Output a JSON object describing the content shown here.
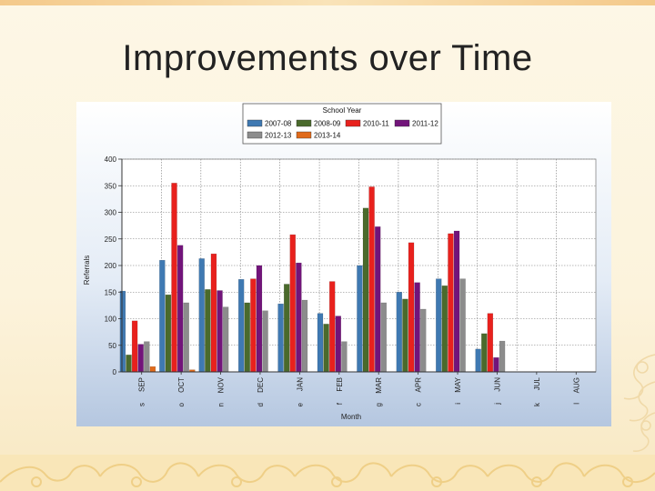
{
  "slide": {
    "title": "Improvements over Time"
  },
  "chart_data": {
    "type": "bar",
    "title": "",
    "xlabel": "Month",
    "ylabel": "Referrals",
    "ylim": [
      0,
      400
    ],
    "yticks": [
      0,
      50,
      100,
      150,
      200,
      250,
      300,
      350,
      400
    ],
    "grid": true,
    "legend_title": "School Year",
    "legend_position": "top-center",
    "categories": [
      "SEP",
      "OCT",
      "NOV",
      "DEC",
      "JAN",
      "FEB",
      "MAR",
      "APR",
      "MAY",
      "JUN",
      "JUL",
      "AUG"
    ],
    "category_prefixes": [
      "s",
      "o",
      "n",
      "d",
      "e",
      "f",
      "g",
      "c",
      "i",
      "j",
      "k",
      "l"
    ],
    "series": [
      {
        "name": "2007-08",
        "color": "#3f79b2",
        "values": [
          152,
          210,
          213,
          174,
          128,
          110,
          200,
          150,
          175,
          43,
          0,
          0
        ]
      },
      {
        "name": "2008-09",
        "color": "#4a6a2c",
        "values": [
          32,
          145,
          155,
          130,
          165,
          90,
          308,
          137,
          162,
          72,
          0,
          0
        ]
      },
      {
        "name": "2010-11",
        "color": "#e8211d",
        "values": [
          96,
          355,
          222,
          175,
          258,
          170,
          348,
          243,
          260,
          110,
          0,
          0
        ]
      },
      {
        "name": "2011-12",
        "color": "#72147a",
        "values": [
          52,
          238,
          153,
          200,
          205,
          105,
          273,
          168,
          265,
          27,
          0,
          0
        ]
      },
      {
        "name": "2012-13",
        "color": "#8c8c8c",
        "values": [
          57,
          130,
          122,
          115,
          135,
          57,
          130,
          118,
          175,
          58,
          0,
          0
        ]
      },
      {
        "name": "2013-14",
        "color": "#e06a1a",
        "values": [
          10,
          4,
          0,
          0,
          0,
          0,
          0,
          0,
          0,
          0,
          0,
          0
        ]
      }
    ]
  }
}
